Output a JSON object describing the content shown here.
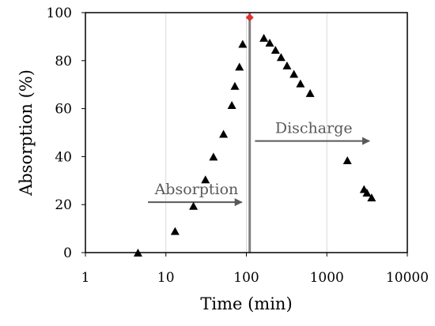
{
  "chart_data": {
    "type": "scatter",
    "title": "",
    "xlabel": "Time (min)",
    "ylabel": "Absorption (%)",
    "x_scale": "log",
    "xlim": [
      1,
      10000
    ],
    "ylim": [
      0,
      100
    ],
    "x_ticks": [
      1,
      10,
      100,
      1000,
      10000
    ],
    "y_ticks": [
      0,
      20,
      40,
      60,
      80,
      100
    ],
    "x_tick_labels": [
      "1",
      "10",
      "100",
      "1000",
      "10000"
    ],
    "y_tick_labels": [
      "0",
      "20",
      "40",
      "60",
      "80",
      "100"
    ],
    "vertical_gridlines": true,
    "horizontal_gridlines": false,
    "marker": "triangle",
    "series": [
      {
        "color": "#000000",
        "points": [
          {
            "x": 4.5,
            "y": 0
          },
          {
            "x": 13,
            "y": 9
          },
          {
            "x": 22,
            "y": 19.5
          },
          {
            "x": 31,
            "y": 30.5
          },
          {
            "x": 39,
            "y": 40
          },
          {
            "x": 52,
            "y": 49.5
          },
          {
            "x": 66,
            "y": 61.5
          },
          {
            "x": 72,
            "y": 69.5
          },
          {
            "x": 82,
            "y": 77.5
          },
          {
            "x": 90,
            "y": 87
          },
          {
            "x": 165,
            "y": 89.5
          },
          {
            "x": 195,
            "y": 87.5
          },
          {
            "x": 230,
            "y": 84.5
          },
          {
            "x": 270,
            "y": 81.5
          },
          {
            "x": 320,
            "y": 78
          },
          {
            "x": 390,
            "y": 74.5
          },
          {
            "x": 470,
            "y": 70.5
          },
          {
            "x": 620,
            "y": 66.5
          },
          {
            "x": 1800,
            "y": 38.5
          },
          {
            "x": 2900,
            "y": 26.5
          },
          {
            "x": 3150,
            "y": 25
          },
          {
            "x": 3600,
            "y": 23
          }
        ]
      }
    ],
    "peak_marker": {
      "x": 110,
      "y": 98,
      "color": "#e03030"
    },
    "reference_line": {
      "x": 110,
      "color": "#808080"
    },
    "annotations": [
      {
        "text": "Absorption",
        "arrow_from": {
          "x": 6,
          "y": 21
        },
        "arrow_to": {
          "x": 96,
          "y": 21
        },
        "color": "#595959"
      },
      {
        "text": "Discharge",
        "arrow_from": {
          "x": 128,
          "y": 46.5
        },
        "arrow_to": {
          "x": 3700,
          "y": 46.5
        },
        "color": "#595959"
      }
    ]
  }
}
